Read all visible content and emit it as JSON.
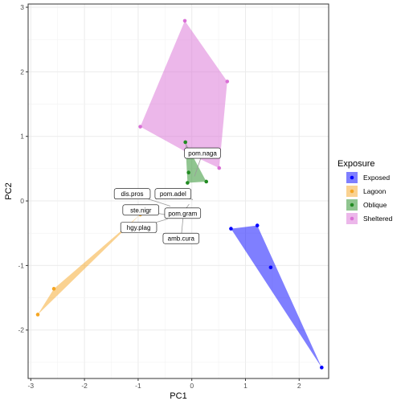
{
  "chart_data": {
    "type": "scatter",
    "title": "",
    "xlabel": "PC1",
    "ylabel": "PC2",
    "xlim": [
      -3.05,
      2.55
    ],
    "ylim": [
      -2.75,
      3.05
    ],
    "x_ticks": [
      -3,
      -2,
      -1,
      0,
      1,
      2
    ],
    "y_ticks": [
      -2,
      -1,
      0,
      1,
      2,
      3
    ],
    "grid": true,
    "legend": {
      "title": "Exposure",
      "position": "right",
      "entries": [
        "Exposed",
        "Lagoon",
        "Oblique",
        "Sheltered"
      ]
    },
    "series": [
      {
        "name": "Exposed",
        "color": "#0000ff",
        "hull_fill": "#7f7fff",
        "points": [
          [
            0.73,
            -0.43
          ],
          [
            1.22,
            -0.38
          ],
          [
            1.47,
            -1.03
          ],
          [
            2.42,
            -2.58
          ]
        ]
      },
      {
        "name": "Lagoon",
        "color": "#f5a623",
        "hull_fill": "#f3d491",
        "points": [
          [
            -2.57,
            -1.36
          ],
          [
            -2.87,
            -1.76
          ],
          [
            -0.96,
            -0.21
          ]
        ]
      },
      {
        "name": "Oblique",
        "color": "#228b22",
        "hull_fill": "#8fc18f",
        "points": [
          [
            -0.12,
            0.91
          ],
          [
            0.27,
            0.3
          ],
          [
            -0.06,
            0.44
          ],
          [
            -0.08,
            0.28
          ]
        ]
      },
      {
        "name": "Sheltered",
        "color": "#da70d6",
        "hull_fill": "#e0a3e0",
        "points": [
          [
            -0.13,
            2.79
          ],
          [
            0.66,
            1.85
          ],
          [
            -0.96,
            1.15
          ],
          [
            0.51,
            0.51
          ],
          [
            0.02,
            0.7
          ]
        ]
      }
    ],
    "labels": [
      {
        "text": "pom.naga",
        "at": [
          0.2,
          0.74
        ],
        "point": [
          0.05,
          0.38
        ]
      },
      {
        "text": "dis.pros",
        "at": [
          -1.11,
          0.11
        ],
        "point": [
          -0.4,
          -0.08
        ]
      },
      {
        "text": "pom.adel",
        "at": [
          -0.35,
          0.11
        ],
        "point": [
          0.02,
          0.02
        ]
      },
      {
        "text": "ste.nigr",
        "at": [
          -0.95,
          -0.14
        ],
        "point": [
          -0.45,
          -0.22
        ]
      },
      {
        "text": "pom.gram",
        "at": [
          -0.17,
          -0.19
        ],
        "point": [
          -0.05,
          -0.05
        ]
      },
      {
        "text": "hgy.plag",
        "at": [
          -0.99,
          -0.41
        ],
        "point": [
          -0.45,
          -0.28
        ]
      },
      {
        "text": "amb.cura",
        "at": [
          -0.2,
          -0.58
        ],
        "point": [
          -0.15,
          -0.15
        ]
      }
    ]
  }
}
